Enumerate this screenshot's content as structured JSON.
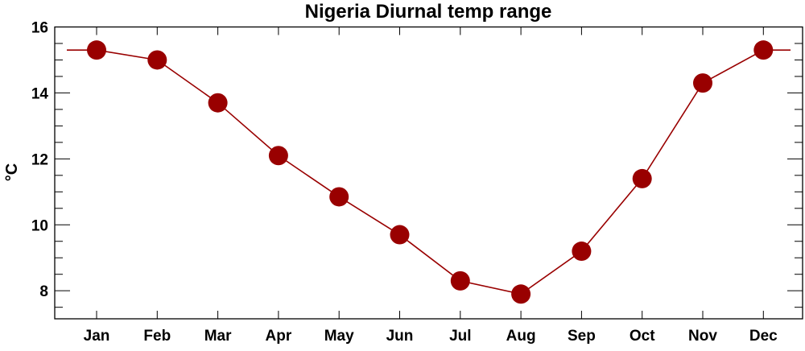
{
  "chart_data": {
    "type": "line",
    "title": "Nigeria Diurnal temp range",
    "xlabel": "",
    "ylabel": "°C",
    "categories": [
      "Jan",
      "Feb",
      "Mar",
      "Apr",
      "May",
      "Jun",
      "Jul",
      "Aug",
      "Sep",
      "Oct",
      "Nov",
      "Dec"
    ],
    "series": [
      {
        "name": "Diurnal temp range",
        "values": [
          15.3,
          15.0,
          13.7,
          12.1,
          10.85,
          9.7,
          8.3,
          7.9,
          9.2,
          11.4,
          14.3,
          15.3
        ],
        "color": "#990000"
      }
    ],
    "ylim": [
      7.15,
      16
    ],
    "yticks": [
      8,
      10,
      12,
      14,
      16
    ],
    "yminor_step": 0.5,
    "grid": false,
    "legend": "none"
  }
}
